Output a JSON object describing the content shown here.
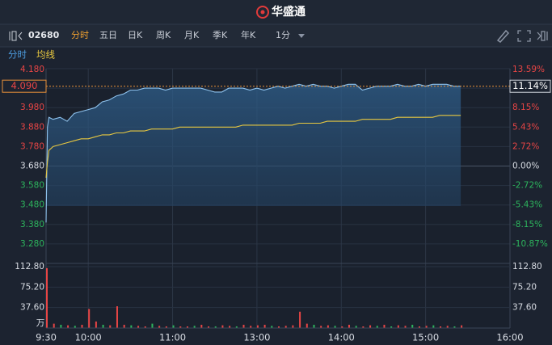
{
  "header": {
    "title": "华盛通"
  },
  "toolbar": {
    "code": "02680",
    "tabs": [
      "分时",
      "五日",
      "日K",
      "周K",
      "月K",
      "季K",
      "年K"
    ],
    "interval": "1分"
  },
  "chart_data": [
    {
      "type": "line",
      "xlim": [
        0,
        330
      ],
      "xticks": [
        {
          "value": 0,
          "label": "9:30"
        },
        {
          "value": 30,
          "label": "10:00"
        },
        {
          "value": 90,
          "label": "11:00"
        },
        {
          "value": 150,
          "label": "13:00"
        },
        {
          "value": 210,
          "label": "14:00"
        },
        {
          "value": 270,
          "label": "15:00"
        },
        {
          "value": 330,
          "label": "16:00"
        }
      ],
      "ylim": [
        3.18,
        4.18
      ],
      "yticks": [
        {
          "value": 4.18,
          "label": "4.180"
        },
        {
          "value": 4.08,
          "label": "4.080"
        },
        {
          "value": 3.98,
          "label": "3.980"
        },
        {
          "value": 3.88,
          "label": "3.880"
        },
        {
          "value": 3.78,
          "label": "3.780"
        },
        {
          "value": 3.68,
          "label": "3.680"
        },
        {
          "value": 3.58,
          "label": "3.580"
        },
        {
          "value": 3.48,
          "label": "3.480"
        },
        {
          "value": 3.38,
          "label": "3.380"
        },
        {
          "value": 3.28,
          "label": "3.280"
        }
      ],
      "y2lim": [
        -13.59,
        13.59
      ],
      "y2ticks": [
        {
          "value": 13.59,
          "label": "13.59%"
        },
        {
          "value": 10.87,
          "label": "10.87%"
        },
        {
          "value": 8.15,
          "label": "8.15%"
        },
        {
          "value": 5.43,
          "label": "5.43%"
        },
        {
          "value": 2.72,
          "label": "2.72%"
        },
        {
          "value": 0,
          "label": "0.00%"
        },
        {
          "value": -2.72,
          "label": "-2.72%"
        },
        {
          "value": -5.43,
          "label": "-5.43%"
        },
        {
          "value": -8.15,
          "label": "-8.15%"
        },
        {
          "value": -10.87,
          "label": "-10.87%"
        }
      ],
      "last_price": {
        "value": 4.09,
        "label": "4.090"
      },
      "last_change": {
        "value": 11.14,
        "label": "11.14%"
      },
      "grid": true,
      "x": [
        0,
        1,
        2,
        5,
        10,
        15,
        20,
        25,
        30,
        35,
        40,
        45,
        50,
        55,
        60,
        65,
        70,
        75,
        80,
        85,
        90,
        95,
        100,
        105,
        110,
        115,
        120,
        125,
        130,
        135,
        140,
        145,
        150,
        155,
        160,
        165,
        170,
        175,
        180,
        185,
        190,
        195,
        200,
        205,
        210,
        215,
        220,
        225,
        230,
        235,
        240,
        245,
        250,
        255,
        260,
        265,
        270,
        275,
        280,
        285,
        290,
        295
      ],
      "series": [
        {
          "name": "分时",
          "color": "#8fc3ee",
          "values": [
            3.39,
            3.88,
            3.93,
            3.92,
            3.93,
            3.91,
            3.95,
            3.96,
            3.97,
            3.98,
            4.01,
            4.02,
            4.04,
            4.05,
            4.07,
            4.07,
            4.08,
            4.08,
            4.08,
            4.07,
            4.08,
            4.08,
            4.08,
            4.08,
            4.08,
            4.07,
            4.06,
            4.06,
            4.08,
            4.08,
            4.08,
            4.07,
            4.08,
            4.07,
            4.08,
            4.09,
            4.08,
            4.09,
            4.1,
            4.09,
            4.1,
            4.09,
            4.09,
            4.08,
            4.09,
            4.1,
            4.1,
            4.07,
            4.08,
            4.09,
            4.09,
            4.09,
            4.1,
            4.09,
            4.09,
            4.1,
            4.09,
            4.1,
            4.1,
            4.1,
            4.09,
            4.09
          ]
        },
        {
          "name": "均线",
          "color": "#e8c840",
          "values": [
            3.62,
            3.7,
            3.76,
            3.78,
            3.79,
            3.8,
            3.81,
            3.82,
            3.82,
            3.83,
            3.84,
            3.84,
            3.85,
            3.85,
            3.86,
            3.86,
            3.86,
            3.87,
            3.87,
            3.87,
            3.87,
            3.88,
            3.88,
            3.88,
            3.88,
            3.88,
            3.88,
            3.88,
            3.88,
            3.88,
            3.89,
            3.89,
            3.89,
            3.89,
            3.89,
            3.89,
            3.89,
            3.89,
            3.9,
            3.9,
            3.9,
            3.9,
            3.91,
            3.91,
            3.91,
            3.91,
            3.91,
            3.92,
            3.92,
            3.92,
            3.92,
            3.92,
            3.93,
            3.93,
            3.93,
            3.93,
            3.93,
            3.93,
            3.94,
            3.94,
            3.94,
            3.94
          ]
        }
      ]
    },
    {
      "type": "bar",
      "unit": "万",
      "xlim": [
        0,
        330
      ],
      "ylim": [
        0,
        112.8
      ],
      "yticks": [
        {
          "value": 112.8,
          "label": "112.80"
        },
        {
          "value": 75.2,
          "label": "75.20"
        },
        {
          "value": 37.6,
          "label": "37.60"
        }
      ],
      "x": [
        0,
        5,
        10,
        15,
        20,
        25,
        30,
        35,
        40,
        45,
        50,
        55,
        60,
        65,
        70,
        75,
        80,
        85,
        90,
        95,
        100,
        105,
        110,
        115,
        120,
        125,
        130,
        135,
        140,
        145,
        150,
        155,
        160,
        165,
        170,
        175,
        180,
        185,
        190,
        195,
        200,
        205,
        210,
        215,
        220,
        225,
        230,
        235,
        240,
        245,
        250,
        255,
        260,
        265,
        270,
        275,
        280,
        285,
        290,
        295
      ],
      "values": [
        110,
        8,
        6,
        5,
        4,
        6,
        35,
        12,
        6,
        5,
        40,
        6,
        5,
        4,
        3,
        8,
        4,
        3,
        5,
        3,
        3,
        4,
        6,
        3,
        3,
        5,
        4,
        3,
        6,
        4,
        5,
        6,
        4,
        3,
        4,
        5,
        30,
        8,
        6,
        4,
        5,
        4,
        3,
        6,
        4,
        3,
        5,
        4,
        6,
        3,
        5,
        4,
        6,
        3,
        4,
        5,
        3,
        4,
        3,
        5
      ],
      "colors": [
        "#e84545",
        "#e84545",
        "#2db55d",
        "#e84545",
        "#2db55d",
        "#e84545",
        "#e84545",
        "#e84545",
        "#2db55d",
        "#e84545",
        "#e84545",
        "#e84545",
        "#2db55d",
        "#e84545",
        "#e84545",
        "#2db55d",
        "#e84545",
        "#e84545",
        "#2db55d",
        "#e84545",
        "#e84545",
        "#2db55d",
        "#e84545",
        "#e84545",
        "#2db55d",
        "#e84545",
        "#e84545",
        "#2db55d",
        "#e84545",
        "#e84545",
        "#e84545",
        "#e84545",
        "#2db55d",
        "#e84545",
        "#e84545",
        "#e84545",
        "#e84545",
        "#e84545",
        "#2db55d",
        "#e84545",
        "#e84545",
        "#2db55d",
        "#e84545",
        "#e84545",
        "#2db55d",
        "#e84545",
        "#e84545",
        "#2db55d",
        "#e84545",
        "#2db55d",
        "#e84545",
        "#e84545",
        "#2db55d",
        "#e84545",
        "#e84545",
        "#2db55d",
        "#e84545",
        "#e84545",
        "#2db55d",
        "#e84545"
      ]
    }
  ]
}
